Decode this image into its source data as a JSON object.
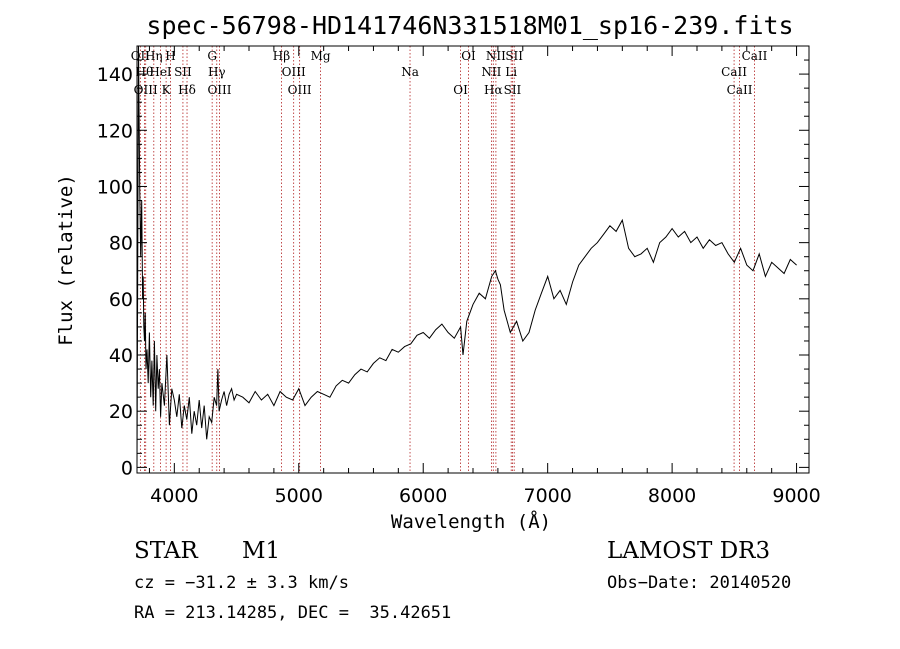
{
  "chart_data": {
    "type": "line",
    "title": "spec-56798-HD141746N331518M01_sp16-239.fits",
    "xlabel": "Wavelength (Å)",
    "ylabel": "Flux (relative)",
    "xlim": [
      3700,
      9100
    ],
    "ylim": [
      -2,
      150
    ],
    "x_ticks": [
      4000,
      5000,
      6000,
      7000,
      8000,
      9000
    ],
    "y_ticks": [
      0,
      20,
      40,
      60,
      80,
      100,
      120,
      140
    ],
    "grid": false,
    "legend": "none",
    "series": [
      {
        "values_description_free": true,
        "x": [
          3700,
          3712,
          3722,
          3730,
          3738,
          3745,
          3750,
          3755,
          3760,
          3766,
          3772,
          3780,
          3790,
          3800,
          3810,
          3820,
          3830,
          3840,
          3850,
          3860,
          3870,
          3880,
          3890,
          3900,
          3920,
          3940,
          3960,
          3980,
          4000,
          4020,
          4040,
          4060,
          4080,
          4100,
          4120,
          4140,
          4160,
          4180,
          4200,
          4220,
          4240,
          4260,
          4280,
          4300,
          4320,
          4340,
          4350,
          4360,
          4380,
          4400,
          4420,
          4440,
          4460,
          4480,
          4500,
          4550,
          4600,
          4650,
          4700,
          4750,
          4800,
          4850,
          4900,
          4950,
          5000,
          5050,
          5100,
          5150,
          5200,
          5250,
          5300,
          5350,
          5400,
          5450,
          5500,
          5550,
          5600,
          5650,
          5700,
          5750,
          5800,
          5850,
          5900,
          5950,
          6000,
          6050,
          6100,
          6150,
          6200,
          6250,
          6300,
          6320,
          6350,
          6400,
          6450,
          6500,
          6550,
          6580,
          6600,
          6620,
          6650,
          6700,
          6750,
          6800,
          6850,
          6900,
          6950,
          7000,
          7050,
          7100,
          7150,
          7200,
          7250,
          7300,
          7350,
          7400,
          7450,
          7500,
          7550,
          7600,
          7650,
          7700,
          7750,
          7800,
          7850,
          7900,
          7950,
          8000,
          8050,
          8100,
          8150,
          8200,
          8250,
          8300,
          8350,
          8400,
          8450,
          8500,
          8550,
          8600,
          8650,
          8700,
          8750,
          8800,
          8850,
          8900,
          8950,
          9000
        ],
        "y": [
          0,
          150,
          100,
          75,
          95,
          60,
          68,
          50,
          45,
          55,
          35,
          42,
          30,
          48,
          25,
          38,
          22,
          45,
          20,
          40,
          28,
          35,
          18,
          30,
          22,
          40,
          15,
          28,
          24,
          18,
          26,
          14,
          22,
          17,
          25,
          12,
          20,
          15,
          24,
          14,
          22,
          10,
          18,
          16,
          25,
          22,
          35,
          20,
          24,
          27,
          22,
          26,
          28,
          24,
          26,
          25,
          23,
          27,
          24,
          26,
          22,
          27,
          25,
          24,
          28,
          22,
          25,
          27,
          26,
          25,
          29,
          31,
          30,
          33,
          35,
          34,
          37,
          39,
          38,
          42,
          41,
          43,
          44,
          47,
          48,
          46,
          49,
          51,
          48,
          46,
          50,
          40,
          52,
          58,
          62,
          60,
          68,
          70,
          67,
          65,
          56,
          48,
          52,
          45,
          48,
          56,
          62,
          68,
          60,
          63,
          58,
          66,
          72,
          75,
          78,
          80,
          83,
          86,
          84,
          88,
          78,
          75,
          76,
          78,
          73,
          80,
          82,
          85,
          82,
          84,
          80,
          82,
          78,
          81,
          79,
          80,
          76,
          73,
          78,
          72,
          70,
          76,
          68,
          73,
          71,
          69,
          74,
          72
        ]
      }
    ],
    "line_marks": [
      {
        "x": 3727,
        "label": "OII"
      },
      {
        "x": 3760,
        "label": "Hθ"
      },
      {
        "x": 3770,
        "label": "OIII"
      },
      {
        "x": 3835,
        "label": "Hη"
      },
      {
        "x": 3889,
        "label": "HeI"
      },
      {
        "x": 3934,
        "label": "K"
      },
      {
        "x": 3969,
        "label": "H"
      },
      {
        "x": 4069,
        "label": "SII"
      },
      {
        "x": 4102,
        "label": "Hδ"
      },
      {
        "x": 4304,
        "label": "G"
      },
      {
        "x": 4341,
        "label": "Hγ"
      },
      {
        "x": 4363,
        "label": "OIII"
      },
      {
        "x": 4861,
        "label": "Hβ"
      },
      {
        "x": 4959,
        "label": "OIII"
      },
      {
        "x": 5007,
        "label": "OIII"
      },
      {
        "x": 5175,
        "label": "Mg"
      },
      {
        "x": 5894,
        "label": "Na"
      },
      {
        "x": 6300,
        "label": "OI"
      },
      {
        "x": 6364,
        "label": "OI"
      },
      {
        "x": 6548,
        "label": "NII"
      },
      {
        "x": 6563,
        "label": "Hα"
      },
      {
        "x": 6584,
        "label": "NII"
      },
      {
        "x": 6707,
        "label": "Li"
      },
      {
        "x": 6717,
        "label": "SII"
      },
      {
        "x": 6731,
        "label": "SII"
      },
      {
        "x": 8498,
        "label": "CaII"
      },
      {
        "x": 8542,
        "label": "CaII"
      },
      {
        "x": 8662,
        "label": "CaII"
      }
    ]
  },
  "info": {
    "class": "STAR",
    "subclass": "M1",
    "survey": "LAMOST DR3",
    "cz": "cz = −31.2 ± 3.3 km/s",
    "obs_date": "Obs−Date: 20140520",
    "coords": "RA = 213.14285, DEC =  35.42651"
  },
  "colors": {
    "spectrum": "#000000",
    "line_markers": "#b22222",
    "axes": "#000000"
  }
}
